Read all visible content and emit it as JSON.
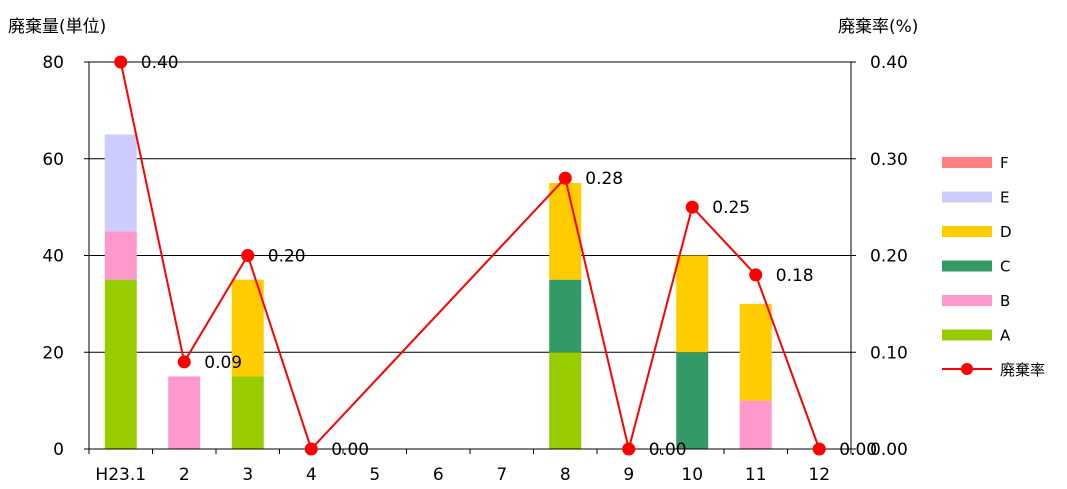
{
  "chart_data": {
    "type": "bar",
    "stacked": true,
    "y_left_label": "廃棄量(単位)",
    "y_right_label": "廃棄率(%)",
    "categories": [
      "H23.1",
      "2",
      "3",
      "4",
      "5",
      "6",
      "7",
      "8",
      "9",
      "10",
      "11",
      "12"
    ],
    "y_left_ticks": [
      "0",
      "20",
      "40",
      "60",
      "80"
    ],
    "y_right_ticks": [
      "0.00",
      "0.10",
      "0.20",
      "0.30",
      "0.40"
    ],
    "ylim_left": [
      0,
      80
    ],
    "ylim_right": [
      0,
      0.4
    ],
    "grid": true,
    "legend_position": "right",
    "series": [
      {
        "name": "A",
        "color": "#99cc00",
        "values": [
          35,
          0,
          15,
          0,
          0,
          0,
          0,
          20,
          0,
          0,
          0,
          0
        ]
      },
      {
        "name": "B",
        "color": "#ff99cc",
        "values": [
          10,
          15,
          0,
          0,
          0,
          0,
          0,
          0,
          0,
          0,
          10,
          0
        ]
      },
      {
        "name": "C",
        "color": "#339966",
        "values": [
          0,
          0,
          0,
          0,
          0,
          0,
          0,
          15,
          0,
          20,
          0,
          0
        ]
      },
      {
        "name": "D",
        "color": "#ffcc00",
        "values": [
          0,
          0,
          20,
          0,
          0,
          0,
          0,
          20,
          0,
          20,
          20,
          0
        ]
      },
      {
        "name": "E",
        "color": "#ccccff",
        "values": [
          20,
          0,
          0,
          0,
          0,
          0,
          0,
          0,
          0,
          0,
          0,
          0
        ]
      },
      {
        "name": "F",
        "color": "#ff8080",
        "values": [
          0,
          0,
          0,
          0,
          0,
          0,
          0,
          0,
          0,
          0,
          0,
          0
        ]
      }
    ],
    "rate_series": {
      "name": "廃棄率",
      "color": "#ff0000",
      "categories": [
        "H23.1",
        "2",
        "3",
        "4",
        "8",
        "9",
        "10",
        "11",
        "12"
      ],
      "values": [
        0.4,
        0.09,
        0.2,
        0.0,
        0.28,
        0.0,
        0.25,
        0.18,
        0.0
      ],
      "labels": [
        "0.40",
        "0.09",
        "0.20",
        "0.00",
        "0.28",
        "0.00",
        "0.25",
        "0.18",
        "0.00"
      ]
    }
  }
}
